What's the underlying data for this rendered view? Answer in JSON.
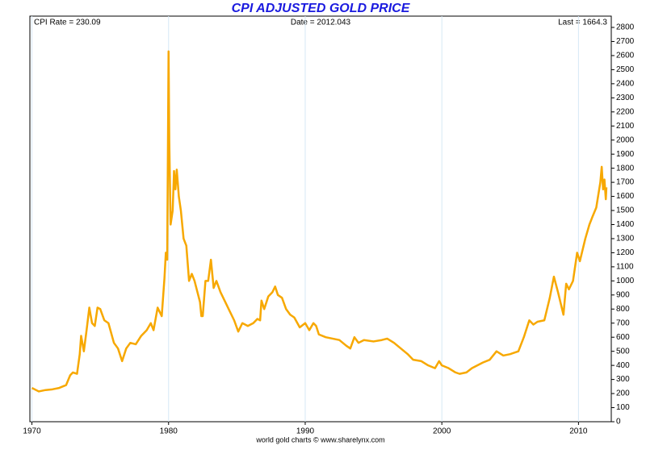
{
  "chart_data": {
    "type": "line",
    "title": "CPI ADJUSTED GOLD PRICE",
    "annotations": {
      "left": "CPI Rate = 230.09",
      "center": "Date = 2012.043",
      "right": "Last = 1664.3"
    },
    "footer": "world gold charts © www.sharelynx.com",
    "color": "#f7a800",
    "x": [
      1970.0,
      1970.5,
      1971,
      1971.5,
      1972,
      1972.5,
      1972.8,
      1973,
      1973.3,
      1973.5,
      1973.6,
      1973.8,
      1974.0,
      1974.2,
      1974.4,
      1974.6,
      1974.8,
      1975.0,
      1975.3,
      1975.6,
      1976.0,
      1976.3,
      1976.6,
      1976.9,
      1977.2,
      1977.6,
      1978.0,
      1978.4,
      1978.7,
      1978.9,
      1979.2,
      1979.5,
      1979.7,
      1979.8,
      1979.9,
      1980.0,
      1980.05,
      1980.15,
      1980.3,
      1980.4,
      1980.5,
      1980.6,
      1980.75,
      1980.9,
      1981.1,
      1981.3,
      1981.5,
      1981.7,
      1981.9,
      1982.3,
      1982.4,
      1982.5,
      1982.7,
      1982.9,
      1983.1,
      1983.3,
      1983.5,
      1983.8,
      1984.0,
      1984.4,
      1984.8,
      1985.1,
      1985.4,
      1985.8,
      1986.2,
      1986.5,
      1986.7,
      1986.8,
      1987.0,
      1987.3,
      1987.6,
      1987.8,
      1988.0,
      1988.3,
      1988.6,
      1988.9,
      1989.2,
      1989.6,
      1990.0,
      1990.3,
      1990.6,
      1990.8,
      1991.0,
      1991.5,
      1992.0,
      1992.5,
      1993.0,
      1993.3,
      1993.6,
      1993.9,
      1994.3,
      1995.0,
      1995.6,
      1996.0,
      1996.5,
      1997.0,
      1997.5,
      1997.9,
      1998.5,
      1999.0,
      1999.5,
      1999.8,
      2000.0,
      2000.5,
      2001.0,
      2001.3,
      2001.8,
      2002.2,
      2002.6,
      2003.0,
      2003.5,
      2004.0,
      2004.5,
      2005.0,
      2005.6,
      2006.0,
      2006.4,
      2006.7,
      2007.0,
      2007.5,
      2007.9,
      2008.2,
      2008.5,
      2008.8,
      2008.9,
      2009.1,
      2009.3,
      2009.6,
      2009.9,
      2010.1,
      2010.5,
      2010.8,
      2011.0,
      2011.3,
      2011.6,
      2011.7,
      2011.8,
      2011.9,
      2012.0,
      2012.043
    ],
    "values": [
      240,
      215,
      225,
      230,
      240,
      260,
      330,
      350,
      340,
      480,
      610,
      500,
      650,
      810,
      700,
      680,
      810,
      800,
      720,
      700,
      560,
      520,
      430,
      520,
      560,
      550,
      610,
      650,
      700,
      650,
      810,
      750,
      1020,
      1200,
      1150,
      2630,
      2000,
      1400,
      1500,
      1780,
      1650,
      1790,
      1600,
      1500,
      1300,
      1250,
      1000,
      1050,
      1000,
      850,
      750,
      750,
      1000,
      1000,
      1150,
      950,
      1000,
      920,
      880,
      800,
      720,
      640,
      700,
      680,
      700,
      730,
      720,
      860,
      800,
      890,
      920,
      960,
      900,
      880,
      800,
      760,
      740,
      670,
      700,
      650,
      700,
      680,
      620,
      600,
      590,
      580,
      540,
      520,
      600,
      560,
      580,
      570,
      580,
      590,
      560,
      520,
      480,
      440,
      430,
      400,
      380,
      430,
      400,
      380,
      350,
      340,
      350,
      380,
      400,
      420,
      440,
      500,
      470,
      480,
      500,
      600,
      720,
      690,
      710,
      720,
      880,
      1030,
      920,
      800,
      760,
      980,
      940,
      1000,
      1200,
      1140,
      1300,
      1400,
      1450,
      1520,
      1700,
      1810,
      1650,
      1720,
      1580,
      1664.3
    ],
    "xlim": [
      1969.85,
      2012.4
    ],
    "xticks": [
      1970,
      1980,
      1990,
      2000,
      2010
    ],
    "ylim": [
      0,
      2800
    ],
    "yticks": [
      0,
      100,
      200,
      300,
      400,
      500,
      600,
      700,
      800,
      900,
      1000,
      1100,
      1200,
      1300,
      1400,
      1500,
      1600,
      1700,
      1800,
      1900,
      2000,
      2100,
      2200,
      2300,
      2400,
      2500,
      2600,
      2700,
      2800
    ],
    "grid": true
  }
}
